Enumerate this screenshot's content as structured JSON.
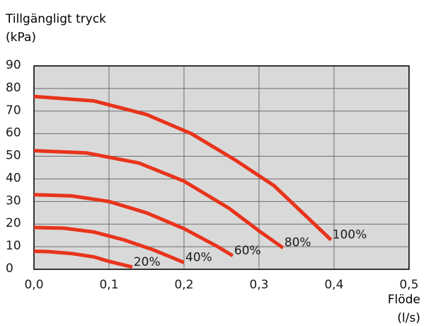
{
  "chart_data": {
    "type": "line",
    "title": "",
    "ylabel": [
      "Tillgängligt tryck",
      "(kPa)"
    ],
    "xlabel": [
      "Flöde",
      "(l/s)"
    ],
    "xlim": [
      0,
      0.5
    ],
    "ylim": [
      0,
      90
    ],
    "xticks": [
      0,
      0.1,
      0.2,
      0.3,
      0.4,
      0.5
    ],
    "xtick_labels": [
      "0,0",
      "0,1",
      "0,2",
      "0,3",
      "0,4",
      "0,5"
    ],
    "yticks": [
      0,
      10,
      20,
      30,
      40,
      50,
      60,
      70,
      80,
      90
    ],
    "ytick_labels": [
      "0",
      "10",
      "20",
      "30",
      "40",
      "50",
      "60",
      "70",
      "80",
      "90"
    ],
    "grid": true,
    "series": [
      {
        "name": "20%",
        "x": [
          0,
          0.02,
          0.05,
          0.08,
          0.1,
          0.131
        ],
        "y": [
          8,
          7.8,
          7,
          5.5,
          3.5,
          1
        ]
      },
      {
        "name": "40%",
        "x": [
          0,
          0.04,
          0.08,
          0.12,
          0.16,
          0.2
        ],
        "y": [
          18.5,
          18.2,
          16.5,
          13,
          8.5,
          3
        ]
      },
      {
        "name": "60%",
        "x": [
          0,
          0.05,
          0.1,
          0.15,
          0.2,
          0.245,
          0.265
        ],
        "y": [
          33,
          32.5,
          30,
          25,
          18,
          10,
          6
        ]
      },
      {
        "name": "80%",
        "x": [
          0,
          0.07,
          0.14,
          0.2,
          0.26,
          0.3,
          0.332
        ],
        "y": [
          52.5,
          51.5,
          47,
          39,
          27,
          17,
          9.5
        ]
      },
      {
        "name": "100%",
        "x": [
          0,
          0.08,
          0.15,
          0.21,
          0.27,
          0.32,
          0.396
        ],
        "y": [
          76.5,
          74.5,
          68.5,
          60,
          48,
          37,
          13
        ]
      }
    ],
    "line_color": "#e8341c",
    "plot_background": "#d9d9d9",
    "grid_color": "#6e6e6e"
  }
}
